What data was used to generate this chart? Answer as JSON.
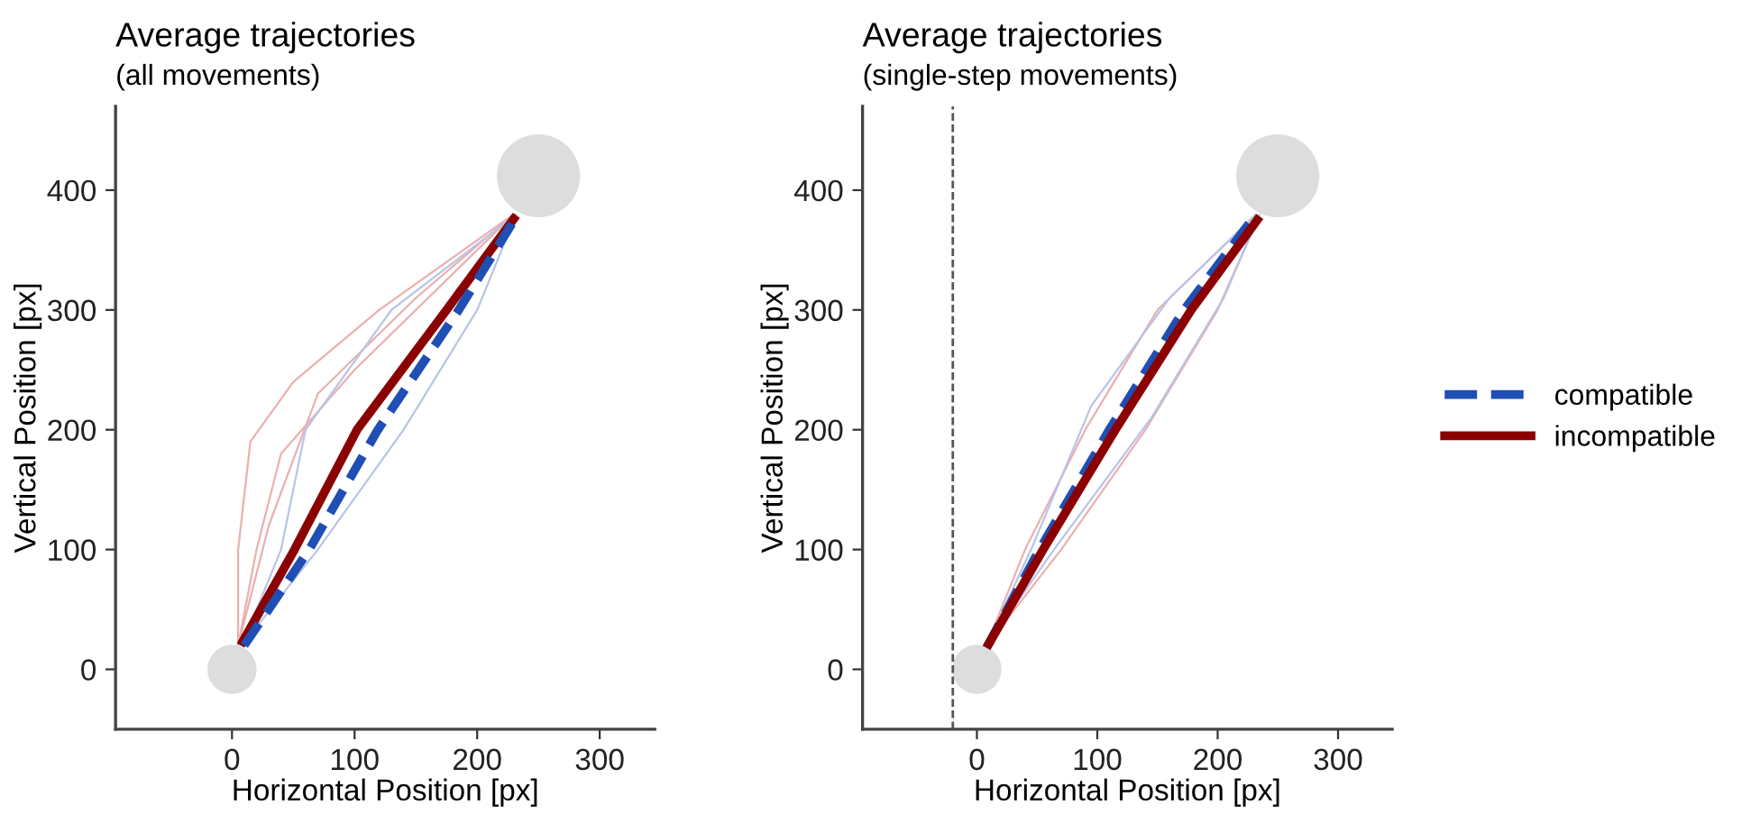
{
  "chart_data": [
    {
      "type": "line",
      "title": "Average trajectories",
      "subtitle": "(all movements)",
      "xlabel": "Horizontal Position [px]",
      "ylabel": "Vertical Position [px]",
      "xlim": [
        -95,
        345
      ],
      "ylim": [
        -50,
        470
      ],
      "xticks": [
        0,
        100,
        200,
        300
      ],
      "yticks": [
        0,
        100,
        200,
        300,
        400
      ],
      "series": [
        {
          "type": "bubble",
          "color": "#dddddd",
          "x": [
            0,
            250
          ],
          "values": [
            0,
            412
          ],
          "sizes": [
            0.35,
            1
          ]
        },
        {
          "color": "#eab0b0",
          "x": [
            5,
            5,
            15,
            50,
            120,
            230
          ],
          "values": [
            20,
            100,
            190,
            240,
            300,
            380
          ]
        },
        {
          "color": "#eab0b0",
          "x": [
            5,
            20,
            40,
            100,
            230
          ],
          "values": [
            20,
            100,
            180,
            250,
            380
          ]
        },
        {
          "color": "#eab0b0",
          "x": [
            5,
            30,
            70,
            150,
            230
          ],
          "values": [
            20,
            120,
            230,
            310,
            380
          ]
        },
        {
          "color": "#b8c4e6",
          "x": [
            8,
            70,
            140,
            200,
            232
          ],
          "values": [
            20,
            100,
            200,
            300,
            380
          ]
        },
        {
          "color": "#b8c4e6",
          "x": [
            8,
            40,
            60,
            130,
            232
          ],
          "values": [
            20,
            100,
            200,
            300,
            380
          ]
        },
        {
          "color": "#8b0000",
          "line_style": "solid",
          "x": [
            7,
            51,
            102,
            175,
            232
          ],
          "values": [
            20,
            100,
            200,
            300,
            379
          ]
        },
        {
          "color": "#1f4fb4",
          "line_style": "dashed",
          "x": [
            10,
            63,
            119,
            185,
            232
          ],
          "values": [
            20,
            100,
            200,
            300,
            378
          ]
        }
      ]
    },
    {
      "type": "line",
      "title": "Average trajectories",
      "subtitle": "(single-step movements)",
      "xlabel": "Horizontal Position [px]",
      "ylabel": "Vertical Position [px]",
      "xlim": [
        -95,
        345
      ],
      "ylim": [
        -50,
        470
      ],
      "xticks": [
        0,
        100,
        200,
        300
      ],
      "yticks": [
        0,
        100,
        200,
        300,
        400
      ],
      "legend": "right",
      "ref_lines": [
        {
          "axis": "x",
          "value": -20,
          "color": "#555555",
          "line_style": "dashed"
        }
      ],
      "series": [
        {
          "type": "bubble",
          "color": "#dddddd",
          "x": [
            0,
            250
          ],
          "values": [
            0,
            412
          ],
          "sizes": [
            0.35,
            1
          ]
        },
        {
          "color": "#eab0b0",
          "x": [
            8,
            70,
            140,
            200,
            235
          ],
          "values": [
            20,
            100,
            200,
            300,
            380
          ]
        },
        {
          "color": "#eab0b0",
          "x": [
            8,
            40,
            90,
            150,
            232
          ],
          "values": [
            20,
            100,
            200,
            300,
            380
          ]
        },
        {
          "color": "#b8c4e6",
          "x": [
            8,
            45,
            95,
            160,
            232
          ],
          "values": [
            20,
            100,
            220,
            310,
            380
          ]
        },
        {
          "color": "#b8c4e6",
          "x": [
            8,
            64,
            145,
            205,
            235
          ],
          "values": [
            20,
            100,
            210,
            310,
            380
          ]
        },
        {
          "name": "compatible",
          "color": "#1f4fb4",
          "line_style": "dashed",
          "x": [
            8,
            52,
            110,
            172,
            232
          ],
          "values": [
            18,
            100,
            200,
            300,
            380
          ]
        },
        {
          "name": "incompatible",
          "color": "#8b0000",
          "line_style": "solid",
          "x": [
            8,
            55,
            115,
            178,
            235
          ],
          "values": [
            18,
            100,
            200,
            300,
            378
          ]
        }
      ]
    }
  ]
}
